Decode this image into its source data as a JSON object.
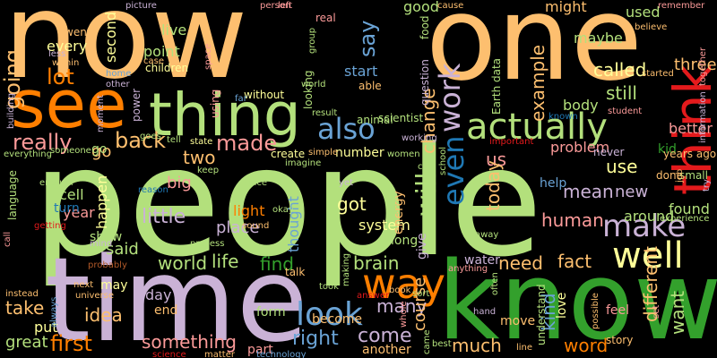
{
  "palette": {
    "green": "#b3e07c",
    "orange": "#fdbf6f",
    "darkorange": "#ff7f00",
    "purple": "#cab2d6",
    "darkgreen": "#33a02c",
    "blue": "#6aa3d5",
    "darkblue": "#1f78b4",
    "red": "#e31a1c",
    "pink": "#fb9a99",
    "deeppurple": "#6a3d9a",
    "yellow": "#ffff99",
    "brown": "#b15928"
  },
  "words": [
    {
      "text": "people",
      "color": "green"
    },
    {
      "text": "time",
      "color": "purple"
    },
    {
      "text": "know",
      "color": "darkgreen"
    },
    {
      "text": "one",
      "color": "orange"
    },
    {
      "text": "now",
      "color": "orange"
    },
    {
      "text": "thing",
      "color": "green"
    },
    {
      "text": "see",
      "color": "darkorange"
    },
    {
      "text": "think",
      "color": "red"
    },
    {
      "text": "way",
      "color": "darkorange"
    },
    {
      "text": "actually",
      "color": "green"
    },
    {
      "text": "well",
      "color": "yellow"
    },
    {
      "text": "look",
      "color": "blue"
    },
    {
      "text": "make",
      "color": "purple"
    },
    {
      "text": "also",
      "color": "blue"
    },
    {
      "text": "even",
      "color": "darkblue"
    },
    {
      "text": "work",
      "color": "purple"
    },
    {
      "text": "will",
      "color": "green"
    },
    {
      "text": "really",
      "color": "pink"
    },
    {
      "text": "say",
      "color": "blue"
    },
    {
      "text": "lot",
      "color": "darkorange"
    },
    {
      "text": "going",
      "color": "orange"
    },
    {
      "text": "back",
      "color": "orange"
    },
    {
      "text": "made",
      "color": "pink"
    },
    {
      "text": "first",
      "color": "darkorange"
    },
    {
      "text": "little",
      "color": "purple"
    },
    {
      "text": "right",
      "color": "blue"
    },
    {
      "text": "come",
      "color": "purple"
    },
    {
      "text": "something",
      "color": "pink"
    },
    {
      "text": "world",
      "color": "green"
    },
    {
      "text": "idea",
      "color": "orange"
    },
    {
      "text": "life",
      "color": "green"
    },
    {
      "text": "find",
      "color": "darkgreen"
    },
    {
      "text": "need",
      "color": "orange"
    },
    {
      "text": "fact",
      "color": "orange"
    },
    {
      "text": "want",
      "color": "green"
    },
    {
      "text": "different",
      "color": "orange"
    },
    {
      "text": "word",
      "color": "darkorange"
    },
    {
      "text": "much",
      "color": "orange"
    },
    {
      "text": "kind",
      "color": "blue"
    },
    {
      "text": "us",
      "color": "pink"
    },
    {
      "text": "human",
      "color": "pink"
    },
    {
      "text": "today",
      "color": "orange"
    },
    {
      "text": "still",
      "color": "green"
    },
    {
      "text": "called",
      "color": "yellow"
    },
    {
      "text": "example",
      "color": "orange"
    },
    {
      "text": "change",
      "color": "orange"
    },
    {
      "text": "brain",
      "color": "green"
    },
    {
      "text": "take",
      "color": "orange"
    },
    {
      "text": "many",
      "color": "purple"
    },
    {
      "text": "mean",
      "color": "purple"
    },
    {
      "text": "use",
      "color": "yellow"
    },
    {
      "text": "two",
      "color": "orange"
    },
    {
      "text": "got",
      "color": "yellow"
    },
    {
      "text": "said",
      "color": "green"
    },
    {
      "text": "new",
      "color": "purple"
    },
    {
      "text": "three",
      "color": "orange"
    },
    {
      "text": "course",
      "color": "orange"
    },
    {
      "text": "great",
      "color": "green"
    },
    {
      "text": "place",
      "color": "purple"
    },
    {
      "text": "light",
      "color": "darkorange"
    },
    {
      "text": "go",
      "color": "orange"
    },
    {
      "text": "big",
      "color": "pink"
    },
    {
      "text": "day",
      "color": "purple"
    },
    {
      "text": "form",
      "color": "green"
    },
    {
      "text": "put",
      "color": "yellow"
    },
    {
      "text": "water",
      "color": "purple"
    },
    {
      "text": "around",
      "color": "green"
    },
    {
      "text": "found",
      "color": "green"
    },
    {
      "text": "body",
      "color": "green"
    },
    {
      "text": "better",
      "color": "pink"
    },
    {
      "text": "problem",
      "color": "pink"
    },
    {
      "text": "maybe",
      "color": "green"
    },
    {
      "text": "point",
      "color": "green"
    },
    {
      "text": "live",
      "color": "green"
    },
    {
      "text": "every",
      "color": "yellow"
    },
    {
      "text": "second",
      "color": "yellow"
    },
    {
      "text": "good",
      "color": "green"
    },
    {
      "text": "might",
      "color": "orange"
    },
    {
      "text": "used",
      "color": "green"
    },
    {
      "text": "thought",
      "color": "blue"
    },
    {
      "text": "cell",
      "color": "green"
    },
    {
      "text": "year",
      "color": "pink"
    },
    {
      "text": "happen",
      "color": "yellow"
    },
    {
      "text": "system",
      "color": "yellow"
    },
    {
      "text": "may",
      "color": "yellow"
    },
    {
      "text": "end",
      "color": "orange"
    },
    {
      "text": "part",
      "color": "pink"
    },
    {
      "text": "become",
      "color": "orange"
    },
    {
      "text": "another",
      "color": "orange"
    },
    {
      "text": "long",
      "color": "green"
    },
    {
      "text": "give",
      "color": "purple"
    },
    {
      "text": "turn",
      "color": "darkblue"
    },
    {
      "text": "help",
      "color": "blue"
    },
    {
      "text": "energy",
      "color": "orange"
    },
    {
      "text": "kid",
      "color": "darkgreen"
    },
    {
      "text": "show",
      "color": "green"
    },
    {
      "text": "go",
      "color": "green"
    },
    {
      "text": "love",
      "color": "yellow"
    },
    {
      "text": "feel",
      "color": "pink"
    },
    {
      "text": "story",
      "color": "orange"
    },
    {
      "text": "move",
      "color": "orange"
    },
    {
      "text": "talk",
      "color": "orange"
    },
    {
      "text": "done",
      "color": "orange"
    },
    {
      "text": "small",
      "color": "green"
    },
    {
      "text": "years ago",
      "color": "orange"
    },
    {
      "text": "never",
      "color": "purple"
    },
    {
      "text": "start",
      "color": "blue"
    },
    {
      "text": "number",
      "color": "yellow"
    },
    {
      "text": "create",
      "color": "yellow"
    },
    {
      "text": "scientist",
      "color": "green"
    },
    {
      "text": "Earth",
      "color": "green"
    },
    {
      "text": "data",
      "color": "green"
    },
    {
      "text": "food",
      "color": "green"
    },
    {
      "text": "question",
      "color": "purple"
    },
    {
      "text": "able",
      "color": "orange"
    },
    {
      "text": "children",
      "color": "yellow"
    },
    {
      "text": "picture",
      "color": "purple"
    },
    {
      "text": "went",
      "color": "orange"
    },
    {
      "text": "less",
      "color": "purple"
    },
    {
      "text": "within",
      "color": "orange"
    },
    {
      "text": "case",
      "color": "orange"
    },
    {
      "text": "space",
      "color": "pink"
    },
    {
      "text": "person",
      "color": "pink"
    },
    {
      "text": "left",
      "color": "pink"
    },
    {
      "text": "real",
      "color": "pink"
    },
    {
      "text": "group",
      "color": "green"
    },
    {
      "text": "cause",
      "color": "orange"
    },
    {
      "text": "remember",
      "color": "pink"
    },
    {
      "text": "believe",
      "color": "orange"
    },
    {
      "text": "together",
      "color": "pink"
    },
    {
      "text": "started",
      "color": "orange"
    },
    {
      "text": "student",
      "color": "pink"
    },
    {
      "text": "information",
      "color": "purple"
    },
    {
      "text": "important",
      "color": "red"
    },
    {
      "text": "working",
      "color": "purple"
    },
    {
      "text": "known",
      "color": "darkblue"
    },
    {
      "text": "world",
      "color": "green"
    },
    {
      "text": "home",
      "color": "blue"
    },
    {
      "text": "power",
      "color": "purple"
    },
    {
      "text": "using",
      "color": "pink"
    },
    {
      "text": "without",
      "color": "yellow"
    },
    {
      "text": "looking",
      "color": "green"
    },
    {
      "text": "animal",
      "color": "green"
    },
    {
      "text": "result",
      "color": "green"
    },
    {
      "text": "building",
      "color": "purple"
    },
    {
      "text": "moment",
      "color": "purple"
    },
    {
      "text": "everything",
      "color": "green"
    },
    {
      "text": "someone",
      "color": "green"
    },
    {
      "text": "goes",
      "color": "green"
    },
    {
      "text": "tell",
      "color": "green"
    },
    {
      "text": "state",
      "color": "yellow"
    },
    {
      "text": "keep",
      "color": "green"
    },
    {
      "text": "imagine",
      "color": "green"
    },
    {
      "text": "simple",
      "color": "orange"
    },
    {
      "text": "women",
      "color": "green"
    },
    {
      "text": "school",
      "color": "green"
    },
    {
      "text": "language",
      "color": "green"
    },
    {
      "text": "enough",
      "color": "green"
    },
    {
      "text": "reason",
      "color": "darkblue"
    },
    {
      "text": "since",
      "color": "green"
    },
    {
      "text": "yet",
      "color": "purple"
    },
    {
      "text": "okay",
      "color": "green"
    },
    {
      "text": "sound",
      "color": "orange"
    },
    {
      "text": "away",
      "color": "green"
    },
    {
      "text": "call",
      "color": "pink"
    },
    {
      "text": "getting",
      "color": "red"
    },
    {
      "text": "mind",
      "color": "purple"
    },
    {
      "text": "process",
      "color": "green"
    },
    {
      "text": "probably",
      "color": "brown"
    },
    {
      "text": "instead",
      "color": "orange"
    },
    {
      "text": "next",
      "color": "orange"
    },
    {
      "text": "universe",
      "color": "orange"
    },
    {
      "text": "always",
      "color": "blue"
    },
    {
      "text": "science",
      "color": "red"
    },
    {
      "text": "matter",
      "color": "orange"
    },
    {
      "text": "technology",
      "color": "blue"
    },
    {
      "text": "took",
      "color": "green"
    },
    {
      "text": "answer",
      "color": "red"
    },
    {
      "text": "anything",
      "color": "pink"
    },
    {
      "text": "making",
      "color": "green"
    },
    {
      "text": "best",
      "color": "green"
    },
    {
      "text": "came",
      "color": "green"
    },
    {
      "text": "sort",
      "color": "green"
    },
    {
      "text": "often",
      "color": "green"
    },
    {
      "text": "whole",
      "color": "pink"
    },
    {
      "text": "hand",
      "color": "purple"
    },
    {
      "text": "line",
      "color": "orange"
    },
    {
      "text": "understand",
      "color": "green"
    },
    {
      "text": "possible",
      "color": "orange"
    },
    {
      "text": "set",
      "color": "pink"
    },
    {
      "text": "experience",
      "color": "green"
    },
    {
      "text": "job",
      "color": "orange"
    },
    {
      "text": "try",
      "color": "purple"
    },
    {
      "text": "book",
      "color": "orange"
    },
    {
      "text": "far",
      "color": "blue"
    },
    {
      "text": "other",
      "color": "purple"
    },
    {
      "text": "car",
      "color": "green"
    },
    {
      "text": "guy",
      "color": "green"
    }
  ]
}
